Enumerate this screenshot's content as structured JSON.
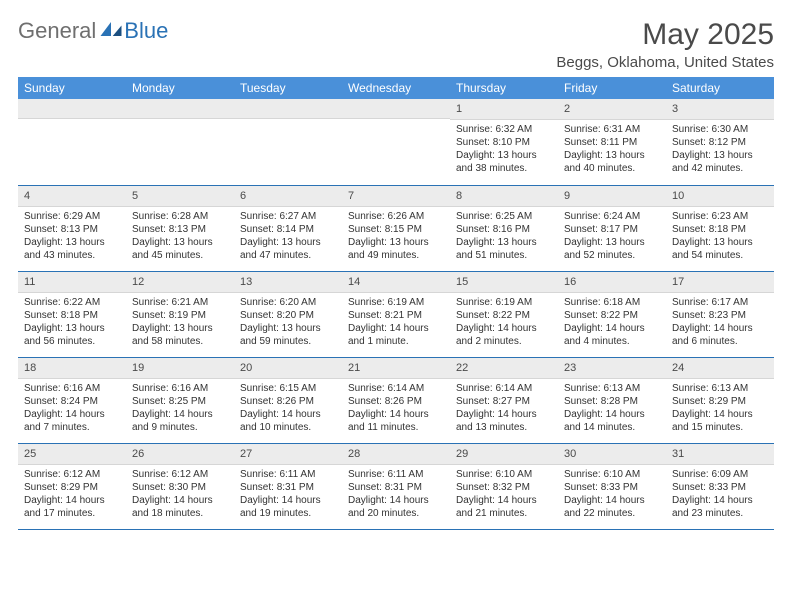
{
  "brand": {
    "general": "General",
    "blue": "Blue"
  },
  "title": "May 2025",
  "location": "Beggs, Oklahoma, United States",
  "header_bg": "#4a90d9",
  "border_color": "#2a72b5",
  "day_bg": "#ececec",
  "weekdays": [
    "Sunday",
    "Monday",
    "Tuesday",
    "Wednesday",
    "Thursday",
    "Friday",
    "Saturday"
  ],
  "weeks": [
    [
      null,
      null,
      null,
      null,
      {
        "n": "1",
        "sr": "6:32 AM",
        "ss": "8:10 PM",
        "dl": "13 hours and 38 minutes."
      },
      {
        "n": "2",
        "sr": "6:31 AM",
        "ss": "8:11 PM",
        "dl": "13 hours and 40 minutes."
      },
      {
        "n": "3",
        "sr": "6:30 AM",
        "ss": "8:12 PM",
        "dl": "13 hours and 42 minutes."
      }
    ],
    [
      {
        "n": "4",
        "sr": "6:29 AM",
        "ss": "8:13 PM",
        "dl": "13 hours and 43 minutes."
      },
      {
        "n": "5",
        "sr": "6:28 AM",
        "ss": "8:13 PM",
        "dl": "13 hours and 45 minutes."
      },
      {
        "n": "6",
        "sr": "6:27 AM",
        "ss": "8:14 PM",
        "dl": "13 hours and 47 minutes."
      },
      {
        "n": "7",
        "sr": "6:26 AM",
        "ss": "8:15 PM",
        "dl": "13 hours and 49 minutes."
      },
      {
        "n": "8",
        "sr": "6:25 AM",
        "ss": "8:16 PM",
        "dl": "13 hours and 51 minutes."
      },
      {
        "n": "9",
        "sr": "6:24 AM",
        "ss": "8:17 PM",
        "dl": "13 hours and 52 minutes."
      },
      {
        "n": "10",
        "sr": "6:23 AM",
        "ss": "8:18 PM",
        "dl": "13 hours and 54 minutes."
      }
    ],
    [
      {
        "n": "11",
        "sr": "6:22 AM",
        "ss": "8:18 PM",
        "dl": "13 hours and 56 minutes."
      },
      {
        "n": "12",
        "sr": "6:21 AM",
        "ss": "8:19 PM",
        "dl": "13 hours and 58 minutes."
      },
      {
        "n": "13",
        "sr": "6:20 AM",
        "ss": "8:20 PM",
        "dl": "13 hours and 59 minutes."
      },
      {
        "n": "14",
        "sr": "6:19 AM",
        "ss": "8:21 PM",
        "dl": "14 hours and 1 minute."
      },
      {
        "n": "15",
        "sr": "6:19 AM",
        "ss": "8:22 PM",
        "dl": "14 hours and 2 minutes."
      },
      {
        "n": "16",
        "sr": "6:18 AM",
        "ss": "8:22 PM",
        "dl": "14 hours and 4 minutes."
      },
      {
        "n": "17",
        "sr": "6:17 AM",
        "ss": "8:23 PM",
        "dl": "14 hours and 6 minutes."
      }
    ],
    [
      {
        "n": "18",
        "sr": "6:16 AM",
        "ss": "8:24 PM",
        "dl": "14 hours and 7 minutes."
      },
      {
        "n": "19",
        "sr": "6:16 AM",
        "ss": "8:25 PM",
        "dl": "14 hours and 9 minutes."
      },
      {
        "n": "20",
        "sr": "6:15 AM",
        "ss": "8:26 PM",
        "dl": "14 hours and 10 minutes."
      },
      {
        "n": "21",
        "sr": "6:14 AM",
        "ss": "8:26 PM",
        "dl": "14 hours and 11 minutes."
      },
      {
        "n": "22",
        "sr": "6:14 AM",
        "ss": "8:27 PM",
        "dl": "14 hours and 13 minutes."
      },
      {
        "n": "23",
        "sr": "6:13 AM",
        "ss": "8:28 PM",
        "dl": "14 hours and 14 minutes."
      },
      {
        "n": "24",
        "sr": "6:13 AM",
        "ss": "8:29 PM",
        "dl": "14 hours and 15 minutes."
      }
    ],
    [
      {
        "n": "25",
        "sr": "6:12 AM",
        "ss": "8:29 PM",
        "dl": "14 hours and 17 minutes."
      },
      {
        "n": "26",
        "sr": "6:12 AM",
        "ss": "8:30 PM",
        "dl": "14 hours and 18 minutes."
      },
      {
        "n": "27",
        "sr": "6:11 AM",
        "ss": "8:31 PM",
        "dl": "14 hours and 19 minutes."
      },
      {
        "n": "28",
        "sr": "6:11 AM",
        "ss": "8:31 PM",
        "dl": "14 hours and 20 minutes."
      },
      {
        "n": "29",
        "sr": "6:10 AM",
        "ss": "8:32 PM",
        "dl": "14 hours and 21 minutes."
      },
      {
        "n": "30",
        "sr": "6:10 AM",
        "ss": "8:33 PM",
        "dl": "14 hours and 22 minutes."
      },
      {
        "n": "31",
        "sr": "6:09 AM",
        "ss": "8:33 PM",
        "dl": "14 hours and 23 minutes."
      }
    ]
  ],
  "labels": {
    "sunrise": "Sunrise: ",
    "sunset": "Sunset: ",
    "daylight": "Daylight: "
  }
}
